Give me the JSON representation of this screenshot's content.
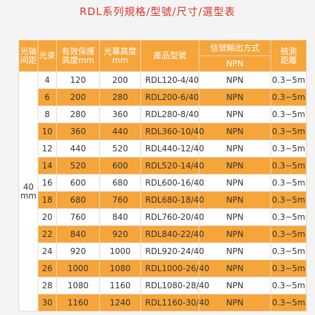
{
  "title": "RDL系列規格/型號/尺寸/選型表",
  "table": {
    "header": [
      [
        "光轴",
        "间距"
      ],
      [
        "光束"
      ],
      [
        "有效保護",
        "高度mm"
      ],
      [
        "光幕高度",
        "mm"
      ],
      [
        "產品型號"
      ],
      [
        "信號輸出方式",
        "NPN"
      ],
      [
        "檢測",
        "距離"
      ]
    ],
    "spacing": [
      "40",
      "mm"
    ],
    "rows": [
      [
        "4",
        "120",
        "200",
        "RDL120-4/40",
        "NPN",
        "0.3−5m"
      ],
      [
        "6",
        "200",
        "280",
        "RDL200-6/40",
        "NPN",
        "0.3−5m"
      ],
      [
        "8",
        "280",
        "360",
        "RDL280-8/40",
        "NPN",
        "0.3−5m"
      ],
      [
        "10",
        "360",
        "440",
        "RDL360-10/40",
        "NPN",
        "0.3−5m"
      ],
      [
        "12",
        "440",
        "520",
        "RDL440-12/40",
        "NPN",
        "0.3−5m"
      ],
      [
        "14",
        "520",
        "600",
        "RDL520-14/40",
        "NPN",
        "0.3−5m"
      ],
      [
        "16",
        "600",
        "680",
        "RDL600-16/40",
        "NPN",
        "0.3−5m"
      ],
      [
        "18",
        "680",
        "760",
        "RDL680-18/40",
        "NPN",
        "0.3−5m"
      ],
      [
        "20",
        "760",
        "840",
        "RDL760-20/40",
        "NPN",
        "0.3−5m"
      ],
      [
        "22",
        "840",
        "920",
        "RDL840-22/40",
        "NPN",
        "0.3−5m"
      ],
      [
        "24",
        "920",
        "1000",
        "RDL920-24/40",
        "NPN",
        "0.3−5m"
      ],
      [
        "26",
        "1000",
        "1080",
        "RDL1000-26/40",
        "NPN",
        "0.3−5m"
      ],
      [
        "28",
        "1080",
        "1160",
        "RDL1080-28/40",
        "NPN",
        "0.3−5m"
      ],
      [
        "30",
        "1160",
        "1240",
        "RDL1160-30/40",
        "NPN",
        "0.3−5m"
      ]
    ]
  }
}
